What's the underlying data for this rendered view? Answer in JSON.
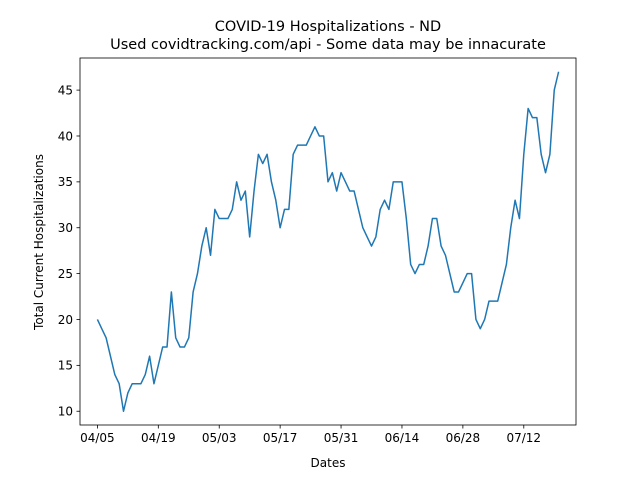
{
  "chart_data": {
    "type": "line",
    "title": "COVID-19 Hospitalizations - ND",
    "subtitle": "Used covidtracking.com/api - Some data may be innacurate",
    "xlabel": "Dates",
    "ylabel": "Total Current Hospitalizations",
    "x_start": "2020-04-05",
    "x_tick_labels": [
      "04/05",
      "04/19",
      "05/03",
      "05/17",
      "05/31",
      "06/14",
      "06/28",
      "07/12"
    ],
    "y_ticks": [
      10,
      15,
      20,
      25,
      30,
      35,
      40,
      45
    ],
    "xlim": [
      "2020-04-01",
      "2020-07-24"
    ],
    "ylim": [
      8.5,
      48.5
    ],
    "grid": false,
    "legend": "none",
    "series": [
      {
        "color": "#1f77b4",
        "values": [
          20,
          19,
          18,
          16,
          14,
          13,
          10,
          12,
          13,
          13,
          13,
          14,
          16,
          13,
          15,
          17,
          17,
          23,
          18,
          17,
          17,
          18,
          23,
          25,
          28,
          30,
          27,
          32,
          31,
          31,
          31,
          32,
          35,
          33,
          34,
          29,
          34,
          38,
          37,
          38,
          35,
          33,
          30,
          32,
          32,
          38,
          39,
          39,
          39,
          40,
          41,
          40,
          40,
          35,
          36,
          34,
          36,
          35,
          34,
          34,
          32,
          30,
          29,
          28,
          29,
          32,
          33,
          32,
          35,
          35,
          35,
          31,
          26,
          25,
          26,
          26,
          28,
          31,
          31,
          28,
          27,
          25,
          23,
          23,
          24,
          25,
          25,
          20,
          19,
          20,
          22,
          22,
          22,
          24,
          26,
          30,
          33,
          31,
          38,
          43,
          42,
          42,
          38,
          36,
          38,
          45,
          47
        ]
      }
    ]
  }
}
